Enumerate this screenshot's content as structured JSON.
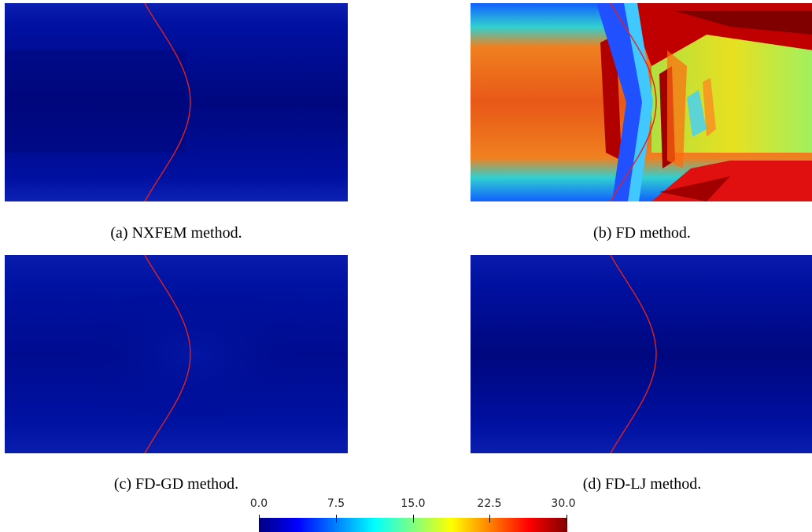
{
  "captions": {
    "a": "(a) NXFEM method.",
    "b": "(b) FD method.",
    "c": "(c) FD-GD method.",
    "d": "(d) FD-LJ method."
  },
  "colorbar": {
    "min": 0.0,
    "max": 30.0,
    "colormap": "jet",
    "ticks": [
      "0.0",
      "7.5",
      "15.0",
      "22.5",
      "30.0"
    ]
  },
  "colors": {
    "interface_line": "#e0221f",
    "field_low": "#00007e",
    "field_high": "#800000"
  }
}
